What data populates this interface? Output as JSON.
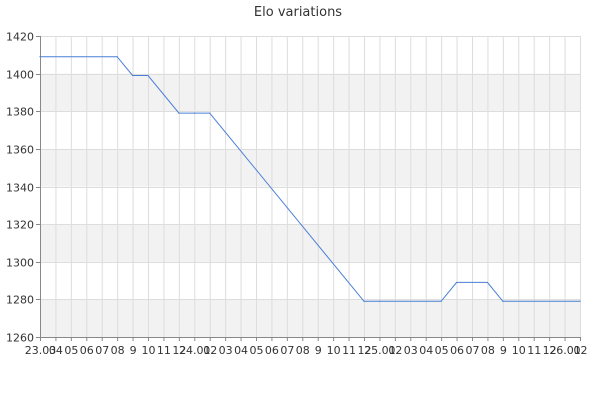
{
  "chart_data": {
    "type": "line",
    "title": "Elo variations",
    "xlabel": "",
    "ylabel": "",
    "ylim": [
      1260,
      1420
    ],
    "y_ticks": [
      1260,
      1280,
      1300,
      1320,
      1340,
      1360,
      1380,
      1400,
      1420
    ],
    "x_tick_labels": [
      "23.03",
      "04",
      "05",
      "06",
      "07",
      "08",
      "9",
      "10",
      "11",
      "12",
      "24.01",
      "02",
      "03",
      "04",
      "05",
      "06",
      "07",
      "08",
      "9",
      "10",
      "11",
      "12",
      "25.01",
      "02",
      "03",
      "04",
      "05",
      "06",
      "07",
      "08",
      "9",
      "10",
      "11",
      "12",
      "26.01",
      "02"
    ],
    "grid": true,
    "alternating_bands": true,
    "series": [
      {
        "color": "#4a7fd6",
        "points": [
          {
            "x": "23.03",
            "y": 1409
          },
          {
            "x": "08",
            "y": 1409
          },
          {
            "x": "9",
            "y": 1399
          },
          {
            "x": "10",
            "y": 1399
          },
          {
            "x": "12",
            "y": 1379
          },
          {
            "x": "24.01",
            "y": 1379
          },
          {
            "x": "02",
            "y": 1379
          },
          {
            "x": "12",
            "y": 1279
          },
          {
            "x": "25.01",
            "y": 1279
          },
          {
            "x": "05",
            "y": 1279
          },
          {
            "x": "06",
            "y": 1289
          },
          {
            "x": "08",
            "y": 1289
          },
          {
            "x": "9",
            "y": 1279
          },
          {
            "x": "02",
            "y": 1279
          }
        ],
        "point_tick_index": [
          0,
          5,
          6,
          7,
          9,
          10,
          11,
          21,
          22,
          26,
          27,
          29,
          30,
          35
        ]
      }
    ],
    "line_color": "#4a7fd6",
    "band_color": "#f2f2f2",
    "grid_color": "#dddddd",
    "axis_color": "#888888"
  }
}
